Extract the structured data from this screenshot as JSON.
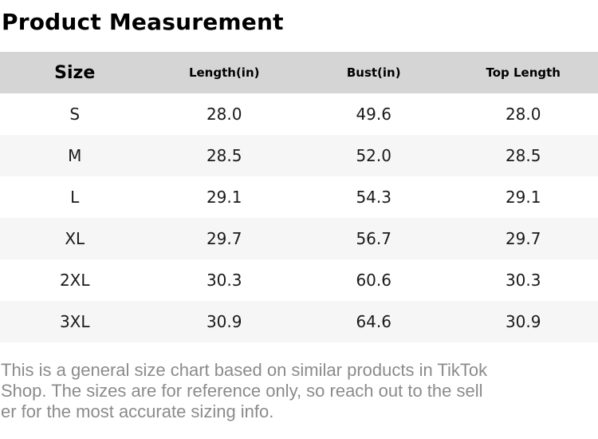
{
  "page": {
    "title": "Product Measurement"
  },
  "colors": {
    "header_background": "#d5d5d5",
    "row_alternate_background": "#f6f6f6",
    "body_text": "#1a1a1a",
    "disclaimer_text": "#8b8b8b"
  },
  "table": {
    "headers": {
      "size": "Size",
      "length": "Length(in)",
      "bust": "Bust(in)",
      "top_length": "Top Length"
    },
    "rows": [
      {
        "size": "S",
        "length": "28.0",
        "bust": "49.6",
        "top_length": "28.0"
      },
      {
        "size": "M",
        "length": "28.5",
        "bust": "52.0",
        "top_length": "28.5"
      },
      {
        "size": "L",
        "length": "29.1",
        "bust": "54.3",
        "top_length": "29.1"
      },
      {
        "size": "XL",
        "length": "29.7",
        "bust": "56.7",
        "top_length": "29.7"
      },
      {
        "size": "2XL",
        "length": "30.3",
        "bust": "60.6",
        "top_length": "30.3"
      },
      {
        "size": "3XL",
        "length": "30.9",
        "bust": "64.6",
        "top_length": "30.9"
      }
    ]
  },
  "disclaimer": {
    "lines": [
      "This is a general size chart based on similar products in TikTok",
      "Shop. The sizes are for reference only, so reach out to the sell",
      "er for the most accurate sizing info."
    ]
  }
}
